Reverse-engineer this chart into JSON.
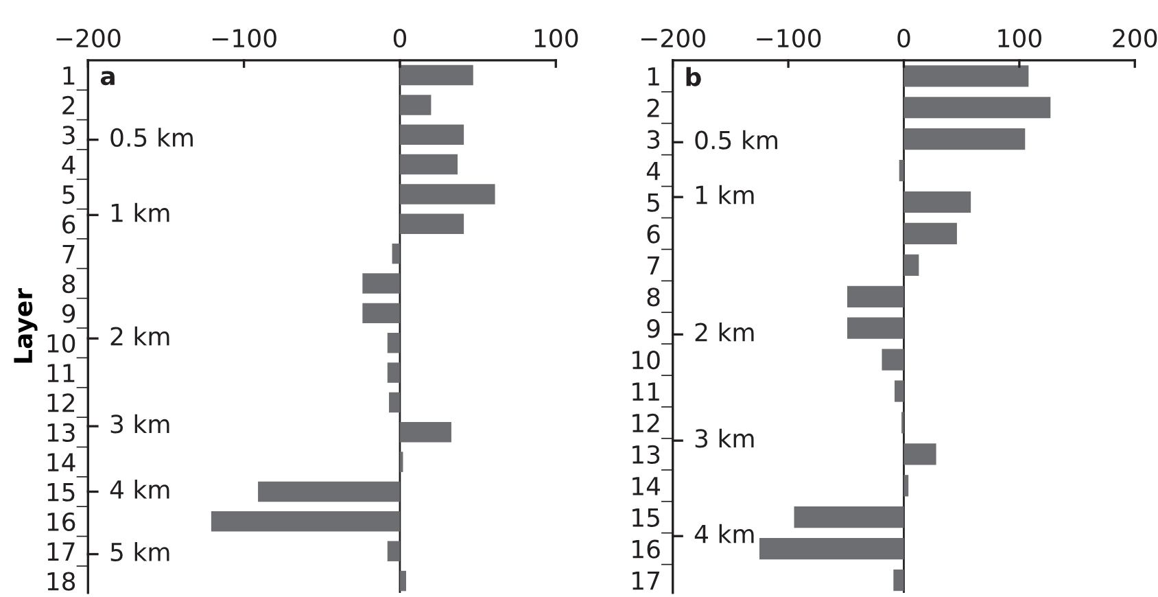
{
  "chart_data": [
    {
      "type": "bar",
      "orientation": "horizontal",
      "title": "a",
      "ylabel": "Layer",
      "color": "#6d6e71",
      "categories": [
        "1",
        "2",
        "3",
        "4",
        "5",
        "6",
        "7",
        "8",
        "9",
        "10",
        "11",
        "12",
        "13",
        "14",
        "15",
        "16",
        "17",
        "18"
      ],
      "values": [
        47,
        20,
        41,
        37,
        61,
        41,
        -5,
        -24,
        -24,
        -8,
        -8,
        -7,
        33,
        2,
        -91,
        -121,
        -8,
        4
      ],
      "xlim": [
        -200,
        100
      ],
      "xticks": [
        -200,
        -100,
        0,
        100
      ],
      "annotations": [
        "0.5 km",
        "1 km",
        "2 km",
        "3 km",
        "4 km",
        "5 km"
      ]
    },
    {
      "type": "bar",
      "orientation": "horizontal",
      "title": "b",
      "color": "#6d6e71",
      "categories": [
        "1",
        "2",
        "3",
        "4",
        "5",
        "6",
        "7",
        "8",
        "9",
        "10",
        "11",
        "12",
        "13",
        "14",
        "15",
        "16",
        "17"
      ],
      "values": [
        108,
        127,
        105,
        -4,
        58,
        46,
        13,
        -49,
        -49,
        -19,
        -8,
        -2,
        28,
        4,
        -95,
        -125,
        -9
      ],
      "xlim": [
        -200,
        200
      ],
      "xticks": [
        -200,
        -100,
        0,
        100,
        200
      ],
      "annotations": [
        "0.5 km",
        "1 km",
        "2 km",
        "3 km",
        "4 km"
      ]
    }
  ]
}
